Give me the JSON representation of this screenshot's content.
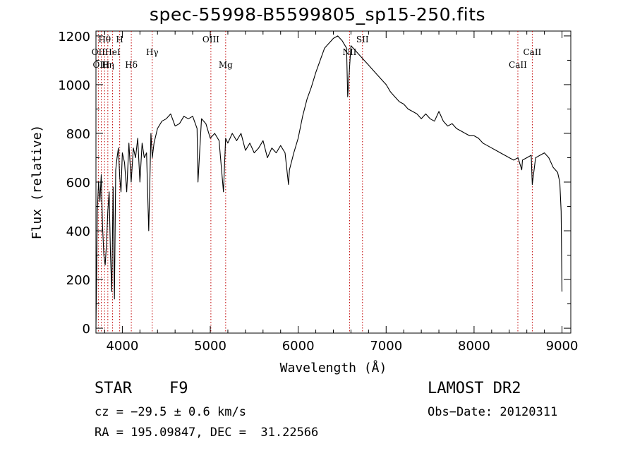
{
  "chart_data": {
    "type": "line",
    "title": "spec-55998-B5599805_sp15-250.fits",
    "xlabel": "Wavelength (Å)",
    "ylabel": "Flux (relative)",
    "xlim": [
      3700,
      9100
    ],
    "ylim": [
      -20,
      1220
    ],
    "x_ticks": [
      "4000",
      "5000",
      "6000",
      "7000",
      "8000",
      "9000"
    ],
    "x_tick_values": [
      4000,
      5000,
      6000,
      7000,
      8000,
      9000
    ],
    "y_ticks": [
      "0",
      "200",
      "400",
      "600",
      "800",
      "1000",
      "1200"
    ],
    "y_tick_values": [
      0,
      200,
      400,
      600,
      800,
      1000,
      1200
    ],
    "grid": false,
    "series": [
      {
        "x": [
          3700,
          3715,
          3730,
          3745,
          3760,
          3775,
          3790,
          3805,
          3820,
          3835,
          3850,
          3865,
          3880,
          3895,
          3910,
          3925,
          3940,
          3955,
          3970,
          3985,
          4000,
          4025,
          4050,
          4075,
          4100,
          4125,
          4150,
          4175,
          4200,
          4225,
          4250,
          4275,
          4300,
          4325,
          4340,
          4360,
          4400,
          4450,
          4500,
          4550,
          4600,
          4650,
          4700,
          4750,
          4800,
          4850,
          4860,
          4900,
          4950,
          5000,
          5050,
          5100,
          5150,
          5175,
          5200,
          5250,
          5300,
          5350,
          5400,
          5450,
          5500,
          5550,
          5600,
          5650,
          5700,
          5750,
          5800,
          5850,
          5890,
          5900,
          5950,
          6000,
          6050,
          6100,
          6150,
          6200,
          6250,
          6300,
          6350,
          6400,
          6450,
          6500,
          6550,
          6563,
          6600,
          6650,
          6700,
          6750,
          6800,
          6850,
          6900,
          6950,
          7000,
          7050,
          7100,
          7150,
          7200,
          7250,
          7300,
          7350,
          7400,
          7450,
          7500,
          7550,
          7600,
          7650,
          7700,
          7750,
          7800,
          7850,
          7900,
          7950,
          8000,
          8050,
          8100,
          8150,
          8200,
          8250,
          8300,
          8350,
          8400,
          8450,
          8500,
          8542,
          8550,
          8600,
          8650,
          8662,
          8700,
          8750,
          8800,
          8850,
          8900,
          8950,
          8975,
          8990,
          9000
        ],
        "y": [
          0,
          480,
          600,
          520,
          630,
          420,
          300,
          260,
          350,
          480,
          560,
          300,
          150,
          580,
          120,
          650,
          700,
          740,
          620,
          560,
          720,
          680,
          560,
          760,
          600,
          740,
          700,
          780,
          600,
          760,
          700,
          720,
          400,
          800,
          700,
          760,
          820,
          850,
          860,
          880,
          830,
          840,
          870,
          860,
          870,
          820,
          600,
          860,
          840,
          780,
          800,
          770,
          560,
          780,
          760,
          800,
          770,
          800,
          730,
          760,
          720,
          740,
          770,
          700,
          740,
          720,
          750,
          720,
          590,
          650,
          720,
          780,
          870,
          940,
          990,
          1050,
          1100,
          1150,
          1170,
          1190,
          1200,
          1180,
          1150,
          950,
          1160,
          1140,
          1120,
          1100,
          1080,
          1060,
          1040,
          1020,
          1000,
          970,
          950,
          930,
          920,
          900,
          890,
          880,
          860,
          880,
          860,
          850,
          890,
          850,
          830,
          840,
          820,
          810,
          800,
          790,
          790,
          780,
          760,
          750,
          740,
          730,
          720,
          710,
          700,
          690,
          700,
          650,
          690,
          700,
          710,
          590,
          700,
          710,
          720,
          700,
          660,
          640,
          600,
          480,
          150
        ]
      }
    ],
    "lines": [
      {
        "label": "Hθ",
        "wl": 3798,
        "row": 0
      },
      {
        "label": "H",
        "wl": 3970,
        "row": 0
      },
      {
        "label": "OII",
        "wl": 3727,
        "row": 1
      },
      {
        "label": "HeI",
        "wl": 3889,
        "row": 1
      },
      {
        "label": "OIII",
        "wl": 3760,
        "row": 2
      },
      {
        "label": "Hη",
        "wl": 3835,
        "row": 2
      },
      {
        "label": "Hδ",
        "wl": 4102,
        "row": 2
      },
      {
        "label": "Hγ",
        "wl": 4340,
        "row": 1
      },
      {
        "label": "OIII",
        "wl": 5007,
        "row": 0
      },
      {
        "label": "Mg",
        "wl": 5175,
        "row": 2
      },
      {
        "label": "NII",
        "wl": 6584,
        "row": 1
      },
      {
        "label": "SII",
        "wl": 6731,
        "row": 0
      },
      {
        "label": "CaII",
        "wl": 8498,
        "row": 2
      },
      {
        "label": "CaII",
        "wl": 8662,
        "row": 1
      }
    ]
  },
  "info": {
    "object_type": "STAR",
    "subclass": "F9",
    "survey": "LAMOST DR2",
    "cz": "cz = −29.5 ± 0.6 km/s",
    "obs_date": "Obs−Date: 20120311",
    "coords": "RA = 195.09847, DEC =  31.22566"
  }
}
